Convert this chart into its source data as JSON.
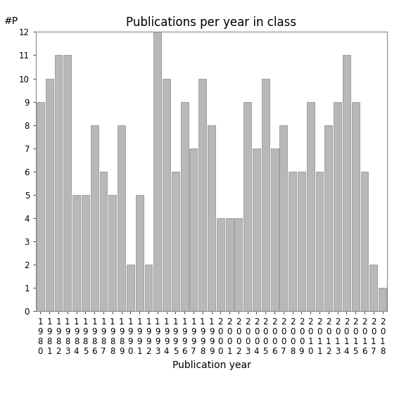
{
  "years": [
    1980,
    1981,
    1982,
    1983,
    1984,
    1985,
    1986,
    1987,
    1988,
    1989,
    1990,
    1991,
    1992,
    1993,
    1994,
    1995,
    1996,
    1997,
    1998,
    1999,
    2000,
    2001,
    2002,
    2003,
    2004,
    2005,
    2006,
    2007,
    2008,
    2009,
    2010,
    2011,
    2012,
    2013,
    2014,
    2015,
    2016,
    2017,
    2018
  ],
  "values": [
    9,
    10,
    11,
    11,
    5,
    5,
    8,
    6,
    5,
    8,
    2,
    5,
    2,
    12,
    10,
    6,
    9,
    7,
    10,
    8,
    4,
    4,
    4,
    9,
    7,
    10,
    7,
    8,
    6,
    6,
    9,
    6,
    8,
    9,
    11,
    9,
    6,
    2,
    1
  ],
  "bar_color": "#b8b8b8",
  "bar_edgecolor": "#888888",
  "title": "Publications per year in class",
  "xlabel": "Publication year",
  "ylabel": "#P",
  "ylim": [
    0,
    12
  ],
  "yticks": [
    0,
    1,
    2,
    3,
    4,
    5,
    6,
    7,
    8,
    9,
    10,
    11,
    12
  ],
  "title_fontsize": 12,
  "label_fontsize": 10,
  "tick_fontsize": 8.5
}
